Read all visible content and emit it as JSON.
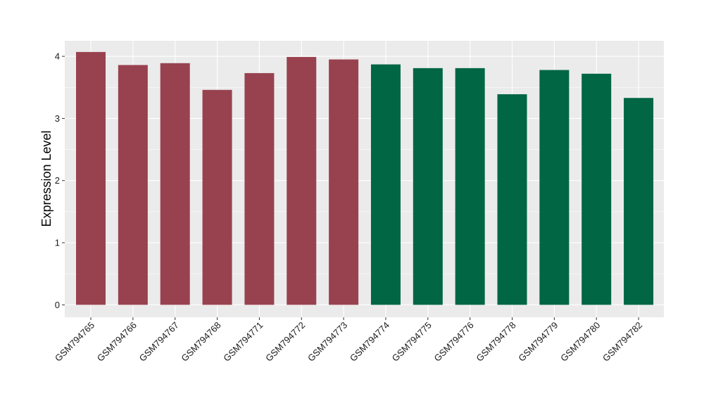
{
  "chart_data": {
    "type": "bar",
    "title": "",
    "xlabel": "",
    "ylabel": "Expression Level",
    "ylim": [
      -0.2,
      4.25
    ],
    "yticks": [
      0,
      1,
      2,
      3,
      4
    ],
    "grid": true,
    "legend": "none",
    "categories": [
      "GSM794765",
      "GSM794766",
      "GSM794767",
      "GSM794768",
      "GSM794771",
      "GSM794772",
      "GSM794773",
      "GSM794774",
      "GSM794775",
      "GSM794776",
      "GSM794778",
      "GSM794779",
      "GSM794780",
      "GSM794782"
    ],
    "values": [
      4.07,
      3.86,
      3.89,
      3.46,
      3.73,
      3.99,
      3.95,
      3.87,
      3.81,
      3.81,
      3.39,
      3.78,
      3.72,
      3.33
    ],
    "bar_colors": [
      "#99424f",
      "#99424f",
      "#99424f",
      "#99424f",
      "#99424f",
      "#99424f",
      "#99424f",
      "#006644",
      "#006644",
      "#006644",
      "#006644",
      "#006644",
      "#006644",
      "#006644"
    ],
    "panel_color": "#ebebeb"
  }
}
